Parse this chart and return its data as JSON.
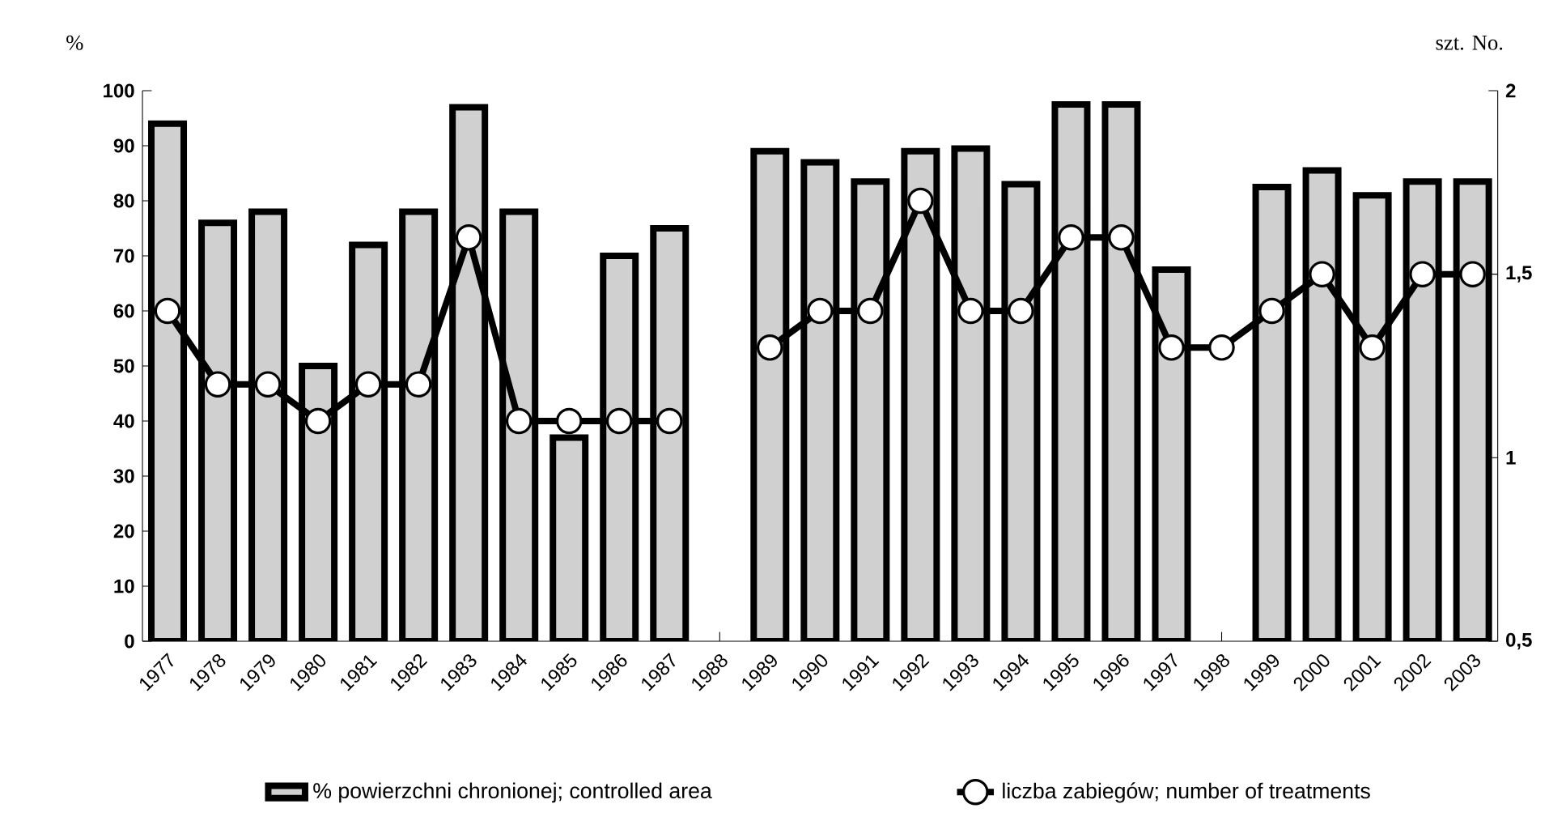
{
  "chart_data": {
    "type": "bar",
    "ylabel": "%",
    "y2label": "szt. No.",
    "categories": [
      "1977",
      "1978",
      "1979",
      "1980",
      "1981",
      "1982",
      "1983",
      "1984",
      "1985",
      "1986",
      "1987",
      "1988",
      "1989",
      "1990",
      "1991",
      "1992",
      "1993",
      "1994",
      "1995",
      "1996",
      "1997",
      "1998",
      "1999",
      "2000",
      "2001",
      "2002",
      "2003"
    ],
    "series": [
      {
        "name": "% powierzchni chronionej; controlled area",
        "color": "#d0d0d0",
        "values": [
          94,
          76,
          78,
          50,
          72,
          78,
          97,
          78,
          37,
          70,
          75,
          null,
          89,
          87,
          83.5,
          89,
          89.5,
          83,
          97.5,
          97.5,
          67.5,
          null,
          82.5,
          85.5,
          81,
          83.5,
          83.5
        ]
      },
      {
        "name": "liczba zabiegów; number of treatments",
        "type": "line",
        "axis": "y2",
        "color": "#000000",
        "marker": "circle",
        "values": [
          1.4,
          1.2,
          1.2,
          1.1,
          1.2,
          1.2,
          1.6,
          1.1,
          1.1,
          1.1,
          1.1,
          null,
          1.3,
          1.4,
          1.4,
          1.7,
          1.4,
          1.4,
          1.6,
          1.6,
          1.3,
          1.3,
          1.4,
          1.5,
          1.3,
          1.5,
          1.5
        ]
      }
    ],
    "ylim": [
      0,
      100
    ],
    "yticks": [
      0,
      10,
      20,
      30,
      40,
      50,
      60,
      70,
      80,
      90,
      100
    ],
    "y2lim": [
      0.5,
      2
    ],
    "y2ticks": [
      {
        "value": 0.5,
        "label": "0,5"
      },
      1,
      {
        "value": 1.5,
        "label": "1,5"
      },
      2
    ],
    "legend": "bottom"
  }
}
